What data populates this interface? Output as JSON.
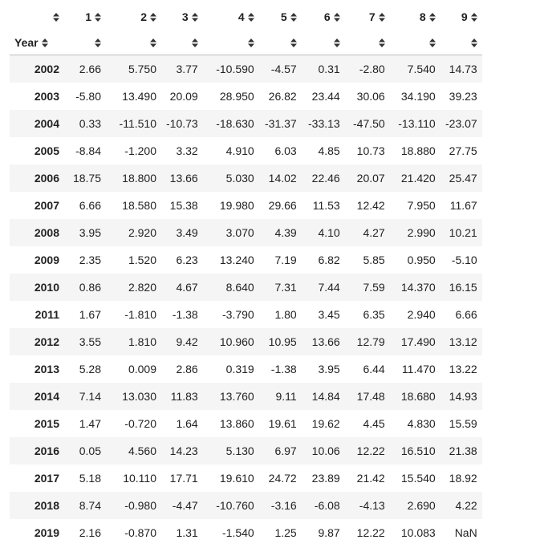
{
  "table": {
    "index_name": "Year",
    "columns": [
      "1",
      "2",
      "3",
      "4",
      "5",
      "6",
      "7",
      "8",
      "9"
    ],
    "rows": [
      {
        "year": "2002",
        "values": [
          "2.66",
          "5.750",
          "3.77",
          "-10.590",
          "-4.57",
          "0.31",
          "-2.80",
          "7.540",
          "14.73"
        ]
      },
      {
        "year": "2003",
        "values": [
          "-5.80",
          "13.490",
          "20.09",
          "28.950",
          "26.82",
          "23.44",
          "30.06",
          "34.190",
          "39.23"
        ]
      },
      {
        "year": "2004",
        "values": [
          "0.33",
          "-11.510",
          "-10.73",
          "-18.630",
          "-31.37",
          "-33.13",
          "-47.50",
          "-13.110",
          "-23.07"
        ]
      },
      {
        "year": "2005",
        "values": [
          "-8.84",
          "-1.200",
          "3.32",
          "4.910",
          "6.03",
          "4.85",
          "10.73",
          "18.880",
          "27.75"
        ]
      },
      {
        "year": "2006",
        "values": [
          "18.75",
          "18.800",
          "13.66",
          "5.030",
          "14.02",
          "22.46",
          "20.07",
          "21.420",
          "25.47"
        ]
      },
      {
        "year": "2007",
        "values": [
          "6.66",
          "18.580",
          "15.38",
          "19.980",
          "29.66",
          "11.53",
          "12.42",
          "7.950",
          "11.67"
        ]
      },
      {
        "year": "2008",
        "values": [
          "3.95",
          "2.920",
          "3.49",
          "3.070",
          "4.39",
          "4.10",
          "4.27",
          "2.990",
          "10.21"
        ]
      },
      {
        "year": "2009",
        "values": [
          "2.35",
          "1.520",
          "6.23",
          "13.240",
          "7.19",
          "6.82",
          "5.85",
          "0.950",
          "-5.10"
        ]
      },
      {
        "year": "2010",
        "values": [
          "0.86",
          "2.820",
          "4.67",
          "8.640",
          "7.31",
          "7.44",
          "7.59",
          "14.370",
          "16.15"
        ]
      },
      {
        "year": "2011",
        "values": [
          "1.67",
          "-1.810",
          "-1.38",
          "-3.790",
          "1.80",
          "3.45",
          "6.35",
          "2.940",
          "6.66"
        ]
      },
      {
        "year": "2012",
        "values": [
          "3.55",
          "1.810",
          "9.42",
          "10.960",
          "10.95",
          "13.66",
          "12.79",
          "17.490",
          "13.12"
        ]
      },
      {
        "year": "2013",
        "values": [
          "5.28",
          "0.009",
          "2.86",
          "0.319",
          "-1.38",
          "3.95",
          "6.44",
          "11.470",
          "13.22"
        ]
      },
      {
        "year": "2014",
        "values": [
          "7.14",
          "13.030",
          "11.83",
          "13.760",
          "9.11",
          "14.84",
          "17.48",
          "18.680",
          "14.93"
        ]
      },
      {
        "year": "2015",
        "values": [
          "1.47",
          "-0.720",
          "1.64",
          "13.860",
          "19.61",
          "19.62",
          "4.45",
          "4.830",
          "15.59"
        ]
      },
      {
        "year": "2016",
        "values": [
          "0.05",
          "4.560",
          "14.23",
          "5.130",
          "6.97",
          "10.06",
          "12.22",
          "16.510",
          "21.38"
        ]
      },
      {
        "year": "2017",
        "values": [
          "5.18",
          "10.110",
          "17.71",
          "19.610",
          "24.72",
          "23.89",
          "21.42",
          "15.540",
          "18.92"
        ]
      },
      {
        "year": "2018",
        "values": [
          "8.74",
          "-0.980",
          "-4.47",
          "-10.760",
          "-3.16",
          "-6.08",
          "-4.13",
          "2.690",
          "4.22"
        ]
      },
      {
        "year": "2019",
        "values": [
          "2.16",
          "-0.870",
          "1.31",
          "-1.540",
          "1.25",
          "9.87",
          "12.22",
          "10.083",
          "NaN"
        ]
      }
    ]
  },
  "icons": {
    "sort": "sort-icon"
  },
  "colors": {
    "stripe": "#f5f5f5",
    "text": "#222222",
    "header_rule": "#bdbdbd"
  }
}
